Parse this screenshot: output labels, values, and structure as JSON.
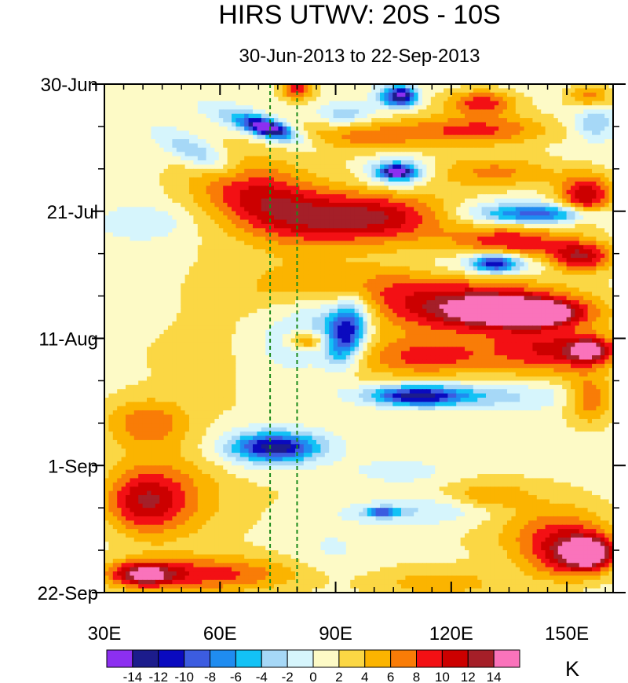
{
  "chart_data": {
    "type": "heatmap",
    "title": "HIRS UTWV: 20S - 10S",
    "subtitle": "30-Jun-2013 to 22-Sep-2013",
    "xlabel": "",
    "ylabel": "",
    "xlim": [
      30,
      162
    ],
    "ylim": [
      0,
      84
    ],
    "y_reversed": true,
    "x_ticks": [
      {
        "value": 30,
        "label": "30E"
      },
      {
        "value": 60,
        "label": "60E"
      },
      {
        "value": 90,
        "label": "90E"
      },
      {
        "value": 120,
        "label": "120E"
      },
      {
        "value": 150,
        "label": "150E"
      }
    ],
    "x_minor_step": 5,
    "y_ticks": [
      {
        "value": 0,
        "label": "30-Jun"
      },
      {
        "value": 21,
        "label": "21-Jul"
      },
      {
        "value": 42,
        "label": "11-Aug"
      },
      {
        "value": 63,
        "label": "1-Sep"
      },
      {
        "value": 84,
        "label": "22-Sep"
      }
    ],
    "y_minor_step": 7,
    "reference_lines_x": [
      73,
      80
    ],
    "reference_line_color": "#1a8a1a",
    "colorbar": {
      "unit": "K",
      "levels": [
        -14,
        -12,
        -10,
        -8,
        -6,
        -4,
        -2,
        0,
        2,
        4,
        6,
        8,
        10,
        12,
        14
      ],
      "level_labels": [
        "-14",
        "-12",
        "-10",
        "-8",
        "-6",
        "-4",
        "-2",
        "0",
        "2",
        "4",
        "6",
        "8",
        "10",
        "12",
        "14"
      ],
      "colors": [
        "#8c2ff0",
        "#1c1c8c",
        "#0a0abf",
        "#3c5ce0",
        "#1f8cf0",
        "#13c2f5",
        "#a6d8f7",
        "#d6f5fc",
        "#fdfac6",
        "#fbd744",
        "#fbb400",
        "#f97c07",
        "#f31014",
        "#cc0000",
        "#a51f28",
        "#fa73bb"
      ]
    },
    "anomaly_features": [
      {
        "lon": [
          30,
          162
        ],
        "day": [
          -1,
          85
        ],
        "value": 3.2,
        "slope": 0
      },
      {
        "lon": [
          76,
          84
        ],
        "day": [
          -1,
          2.5
        ],
        "value": 9,
        "slope": 0
      },
      {
        "lon": [
          100,
          110
        ],
        "day": [
          0,
          4
        ],
        "value": -7,
        "slope": 0
      },
      {
        "lon": [
          104,
          111
        ],
        "day": [
          0.5,
          3.5
        ],
        "value": -11,
        "slope": 0
      },
      {
        "lon": [
          85,
          100
        ],
        "day": [
          3,
          7
        ],
        "value": -5,
        "slope": 0
      },
      {
        "lon": [
          119,
          137
        ],
        "day": [
          1,
          5
        ],
        "value": 8,
        "slope": 0
      },
      {
        "lon": [
          150,
          162
        ],
        "day": [
          0,
          4
        ],
        "value": 6,
        "slope": 0
      },
      {
        "lon": [
          59,
          82
        ],
        "day": [
          5,
          9
        ],
        "value": -8,
        "slope": -0.2
      },
      {
        "lon": [
          67,
          78
        ],
        "day": [
          6,
          8.5
        ],
        "value": -13,
        "slope": -0.15
      },
      {
        "lon": [
          45,
          64
        ],
        "day": [
          9,
          14
        ],
        "value": -6,
        "slope": -0.25
      },
      {
        "lon": [
          79,
          117
        ],
        "day": [
          6,
          11
        ],
        "value": 5,
        "slope": 0
      },
      {
        "lon": [
          110,
          146
        ],
        "day": [
          5,
          10
        ],
        "value": 7,
        "slope": 0
      },
      {
        "lon": [
          152,
          162
        ],
        "day": [
          4,
          9
        ],
        "value": -5,
        "slope": 0
      },
      {
        "lon": [
          98,
          114
        ],
        "day": [
          12,
          17
        ],
        "value": -8,
        "slope": 0
      },
      {
        "lon": [
          102,
          110
        ],
        "day": [
          13.5,
          15.5
        ],
        "value": -13,
        "slope": 0
      },
      {
        "lon": [
          116,
          148
        ],
        "day": [
          12,
          17
        ],
        "value": 5,
        "slope": 0
      },
      {
        "lon": [
          148,
          162
        ],
        "day": [
          15,
          22
        ],
        "value": 11,
        "slope": 0
      },
      {
        "lon": [
          54,
          88
        ],
        "day": [
          13,
          25
        ],
        "value": 9,
        "slope": -0.15
      },
      {
        "lon": [
          78,
          118
        ],
        "day": [
          18,
          26
        ],
        "value": 10,
        "slope": 0
      },
      {
        "lon": [
          120,
          150
        ],
        "day": [
          19,
          24
        ],
        "value": -5,
        "slope": 0
      },
      {
        "lon": [
          130,
          160
        ],
        "day": [
          20,
          23
        ],
        "value": -8,
        "slope": 0
      },
      {
        "lon": [
          121,
          150
        ],
        "day": [
          23,
          30
        ],
        "value": 9,
        "slope": 0
      },
      {
        "lon": [
          145,
          162
        ],
        "day": [
          26,
          31
        ],
        "value": 11,
        "slope": 0
      },
      {
        "lon": [
          30,
          52
        ],
        "day": [
          20,
          26
        ],
        "value": -3,
        "slope": 0
      },
      {
        "lon": [
          116,
          150
        ],
        "day": [
          27,
          32
        ],
        "value": -7,
        "slope": 0
      },
      {
        "lon": [
          126,
          137
        ],
        "day": [
          28,
          31
        ],
        "value": -12,
        "slope": 0
      },
      {
        "lon": [
          70,
          110
        ],
        "day": [
          30,
          37
        ],
        "value": 5,
        "slope": 0
      },
      {
        "lon": [
          100,
          150
        ],
        "day": [
          32,
          41
        ],
        "value": 9,
        "slope": 0
      },
      {
        "lon": [
          120,
          155
        ],
        "day": [
          35,
          40
        ],
        "value": 11,
        "slope": 0
      },
      {
        "lon": [
          132,
          150
        ],
        "day": [
          36.5,
          39.5
        ],
        "value": 13,
        "slope": 0
      },
      {
        "lon": [
          70,
          98
        ],
        "day": [
          33,
          47
        ],
        "value": -7,
        "slope": 0.2
      },
      {
        "lon": [
          88,
          98
        ],
        "day": [
          36,
          46
        ],
        "value": -12,
        "slope": 0.3
      },
      {
        "lon": [
          74,
          86
        ],
        "day": [
          37,
          44
        ],
        "value": 2,
        "slope": 0
      },
      {
        "lon": [
          78,
          88
        ],
        "day": [
          41,
          44
        ],
        "value": 7,
        "slope": 0
      },
      {
        "lon": [
          30,
          70
        ],
        "day": [
          40,
          50
        ],
        "value": 0.5,
        "slope": 0
      },
      {
        "lon": [
          98,
          130
        ],
        "day": [
          42,
          48
        ],
        "value": 6,
        "slope": 0
      },
      {
        "lon": [
          130,
          162
        ],
        "day": [
          40,
          48
        ],
        "value": 8,
        "slope": 0
      },
      {
        "lon": [
          150,
          162
        ],
        "day": [
          42,
          46
        ],
        "value": 11,
        "slope": 0
      },
      {
        "lon": [
          90,
          150
        ],
        "day": [
          49,
          54
        ],
        "value": -6,
        "slope": 0
      },
      {
        "lon": [
          100,
          122
        ],
        "day": [
          50,
          53
        ],
        "value": -11,
        "slope": 0
      },
      {
        "lon": [
          150,
          162
        ],
        "day": [
          48,
          56
        ],
        "value": 7,
        "slope": 0
      },
      {
        "lon": [
          30,
          52
        ],
        "day": [
          52,
          60
        ],
        "value": 6,
        "slope": 0
      },
      {
        "lon": [
          85,
          150
        ],
        "day": [
          54,
          63
        ],
        "value": -1,
        "slope": 0
      },
      {
        "lon": [
          58,
          92
        ],
        "day": [
          56,
          64
        ],
        "value": -6,
        "slope": 0
      },
      {
        "lon": [
          64,
          84
        ],
        "day": [
          58,
          62
        ],
        "value": -10,
        "slope": 0
      },
      {
        "lon": [
          30,
          62
        ],
        "day": [
          60,
          76
        ],
        "value": 5,
        "slope": 0
      },
      {
        "lon": [
          30,
          50
        ],
        "day": [
          64,
          74
        ],
        "value": 7,
        "slope": 0
      },
      {
        "lon": [
          95,
          118
        ],
        "day": [
          62,
          66
        ],
        "value": -4,
        "slope": 0
      },
      {
        "lon": [
          120,
          140
        ],
        "day": [
          66,
          70
        ],
        "value": 4,
        "slope": 0
      },
      {
        "lon": [
          90,
          130
        ],
        "day": [
          68,
          73
        ],
        "value": -4,
        "slope": 0
      },
      {
        "lon": [
          98,
          106
        ],
        "day": [
          70,
          71.5
        ],
        "value": -10,
        "slope": 0
      },
      {
        "lon": [
          130,
          162
        ],
        "day": [
          68,
          80
        ],
        "value": 5,
        "slope": 0
      },
      {
        "lon": [
          140,
          162
        ],
        "day": [
          73,
          82
        ],
        "value": 8,
        "slope": 0
      },
      {
        "lon": [
          150,
          162
        ],
        "day": [
          75,
          80
        ],
        "value": 12,
        "slope": 0
      },
      {
        "lon": [
          78,
          100
        ],
        "day": [
          72,
          82
        ],
        "value": -2,
        "slope": 0
      },
      {
        "lon": [
          30,
          80
        ],
        "day": [
          78,
          84
        ],
        "value": 8,
        "slope": 0
      },
      {
        "lon": [
          32,
          48
        ],
        "day": [
          79,
          83
        ],
        "value": 10,
        "slope": 0
      },
      {
        "lon": [
          100,
          135
        ],
        "day": [
          80,
          85
        ],
        "value": 4,
        "slope": 0
      }
    ]
  }
}
